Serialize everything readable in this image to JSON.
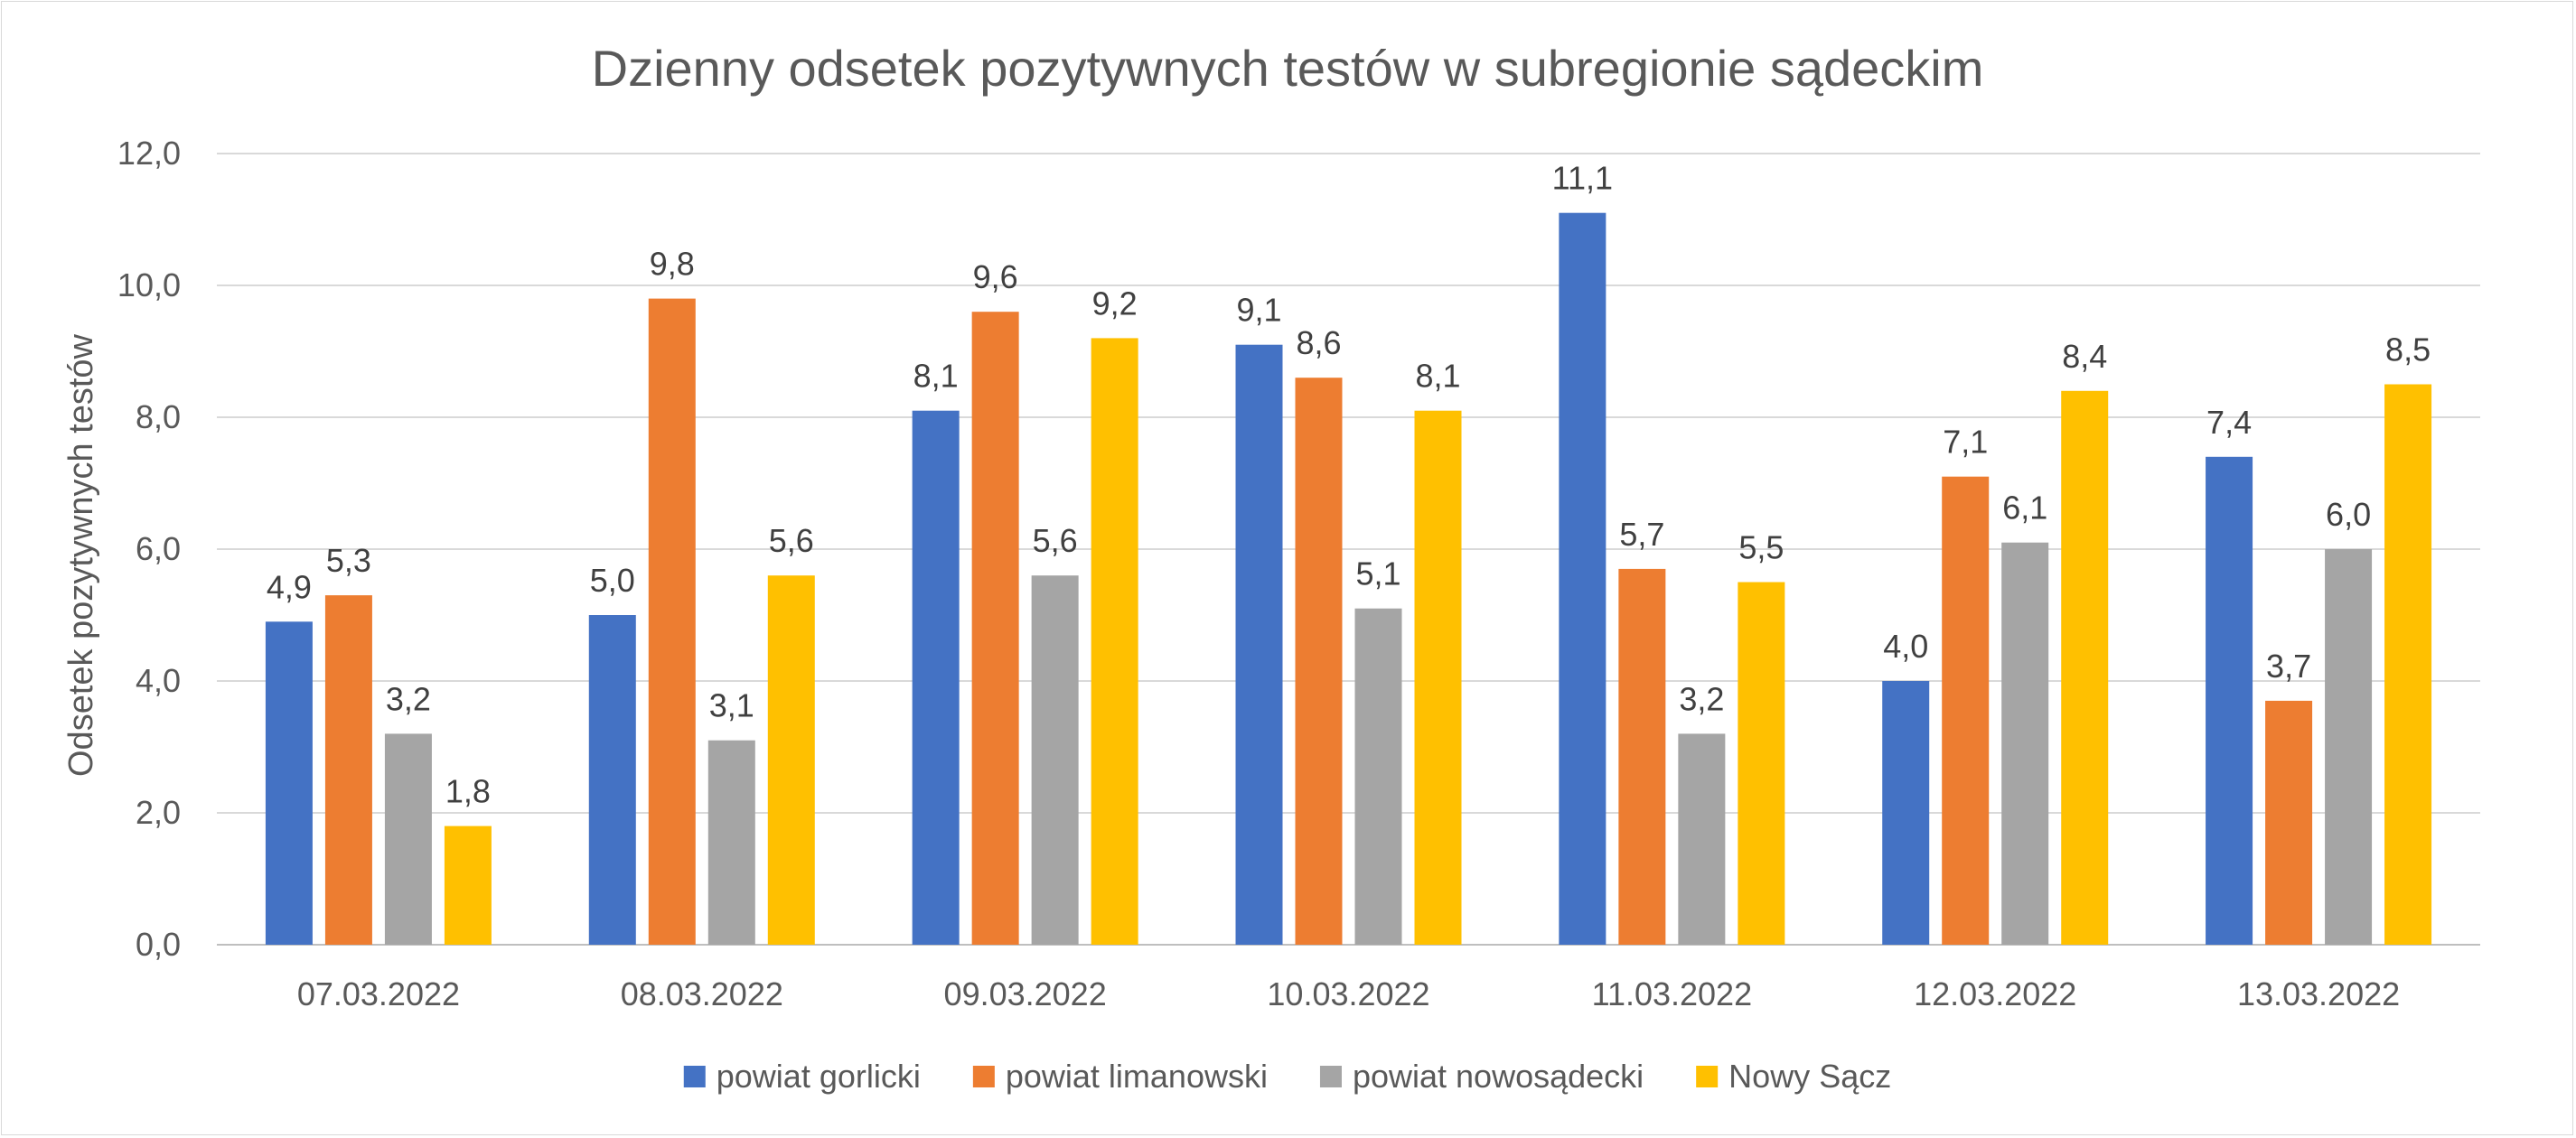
{
  "chart_data": {
    "type": "bar",
    "title": "Dzienny odsetek pozytywnych testów w subregionie sądeckim",
    "xlabel": "",
    "ylabel": "Odsetek pozytywnych testów",
    "ylim": [
      0,
      12
    ],
    "y_ticks": [
      "0,0",
      "2,0",
      "4,0",
      "6,0",
      "8,0",
      "10,0",
      "12,0"
    ],
    "grid": true,
    "legend_position": "bottom",
    "categories": [
      "07.03.2022",
      "08.03.2022",
      "09.03.2022",
      "10.03.2022",
      "11.03.2022",
      "12.03.2022",
      "13.03.2022"
    ],
    "series": [
      {
        "name": "powiat gorlicki",
        "color": "#4472c4",
        "values": [
          4.9,
          5.0,
          8.1,
          9.1,
          11.1,
          4.0,
          7.4
        ],
        "labels": [
          "4,9",
          "5,0",
          "8,1",
          "9,1",
          "11,1",
          "4,0",
          "7,4"
        ]
      },
      {
        "name": "powiat limanowski",
        "color": "#ed7d31",
        "values": [
          5.3,
          9.8,
          9.6,
          8.6,
          5.7,
          7.1,
          3.7
        ],
        "labels": [
          "5,3",
          "9,8",
          "9,6",
          "8,6",
          "5,7",
          "7,1",
          "3,7"
        ]
      },
      {
        "name": "powiat nowosądecki",
        "color": "#a5a5a5",
        "values": [
          3.2,
          3.1,
          5.6,
          5.1,
          3.2,
          6.1,
          6.0
        ],
        "labels": [
          "3,2",
          "3,1",
          "5,6",
          "5,1",
          "3,2",
          "6,1",
          "6,0"
        ]
      },
      {
        "name": "Nowy Sącz",
        "color": "#ffc000",
        "values": [
          1.8,
          5.6,
          9.2,
          8.1,
          5.5,
          8.4,
          8.5
        ],
        "labels": [
          "1,8",
          "5,6",
          "9,2",
          "8,1",
          "5,5",
          "8,4",
          "8,5"
        ]
      }
    ]
  }
}
